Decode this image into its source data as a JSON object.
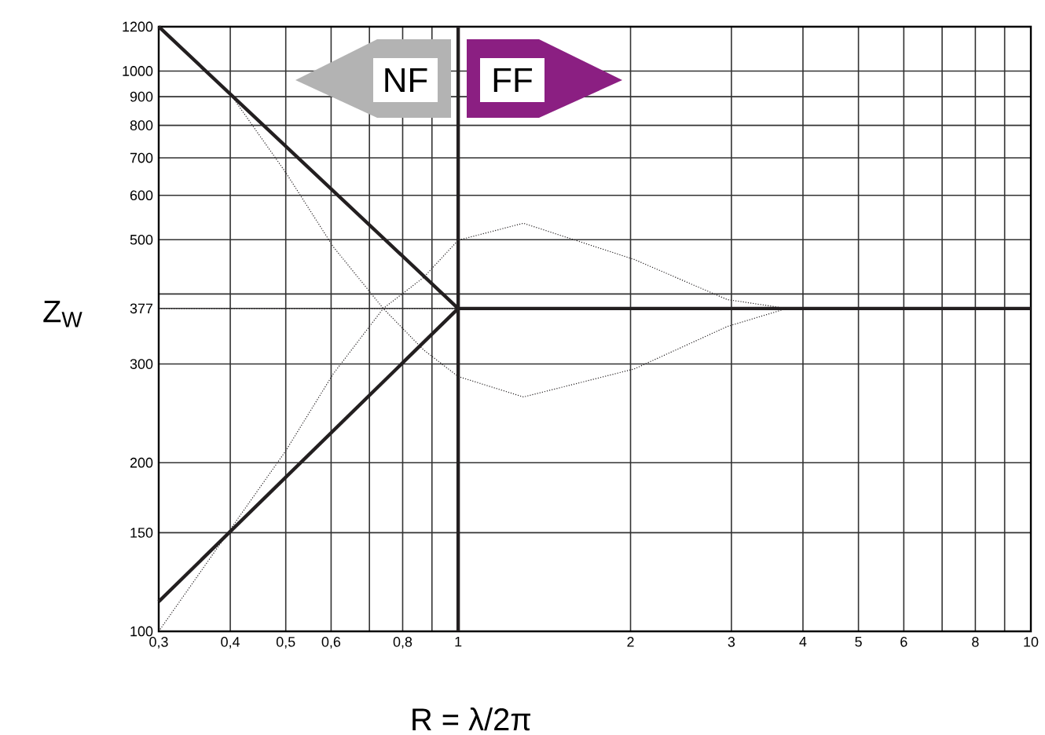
{
  "chart_data": {
    "type": "line",
    "xlabel": "R = λ/2π",
    "ylabel": "Z$_{W}$",
    "log": "xy",
    "grid": true,
    "legend": false,
    "marker": "none",
    "xlim": [
      0.3,
      10
    ],
    "ylim": [
      100,
      1200
    ],
    "xticks": [
      {
        "value": 0.3,
        "label": "0,3"
      },
      {
        "value": 0.4,
        "label": "0,4"
      },
      {
        "value": 0.5,
        "label": "0,5"
      },
      {
        "value": 0.6,
        "label": "0,6"
      },
      {
        "value": 0.7,
        "label": null
      },
      {
        "value": 0.8,
        "label": "0,8"
      },
      {
        "value": 0.9,
        "label": null
      },
      1,
      2,
      3,
      4,
      5,
      6,
      {
        "value": 7,
        "label": null
      },
      8,
      {
        "value": 9,
        "label": null
      },
      10
    ],
    "yticks": [
      100,
      150,
      200,
      300,
      377,
      {
        "value": 400,
        "label": null
      },
      500,
      600,
      700,
      800,
      900,
      1000,
      1200
    ],
    "series": [
      {
        "color": "#231f20",
        "line_style": "solid",
        "x": [
          0.3,
          1,
          10
        ],
        "values": [
          1200,
          377,
          377
        ]
      },
      {
        "color": "#231f20",
        "line_style": "solid",
        "x": [
          0.3,
          1
        ],
        "values": [
          113,
          377
        ]
      },
      {
        "color": "#231f20",
        "line_style": "dotted",
        "x": [
          0.3,
          0.4,
          0.5,
          0.605,
          0.74,
          0.87,
          1.0,
          1.3,
          2.03,
          2.95,
          3.75
        ],
        "values": [
          1200,
          910,
          659,
          486,
          377,
          318,
          285,
          262,
          294,
          350,
          377
        ]
      },
      {
        "color": "#231f20",
        "line_style": "dotted",
        "x": [
          0.3,
          0.4,
          0.5,
          0.605,
          0.74,
          0.87,
          1.0,
          1.3,
          2.03,
          2.95,
          3.75
        ],
        "values": [
          100,
          152,
          210,
          288,
          377,
          428,
          499,
          535,
          461,
          391,
          377
        ]
      },
      {
        "color": "#231f20",
        "line_style": "dotted",
        "x": [
          0.3,
          1
        ],
        "values": [
          377,
          377
        ]
      }
    ],
    "ref_lines": [
      {
        "axis": "x",
        "value": 1,
        "color": "#231f20",
        "line_style": "solid"
      }
    ],
    "annotations": [
      "NF",
      "FF"
    ]
  }
}
